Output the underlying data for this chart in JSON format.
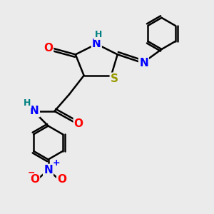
{
  "bg_color": "#ebebeb",
  "line_color": "#000000",
  "bond_width": 1.8,
  "atom_colors": {
    "O": "#ff0000",
    "N": "#0000ff",
    "S": "#999900",
    "H": "#008080",
    "C": "#000000"
  },
  "font_size_atoms": 11,
  "font_size_small": 9
}
